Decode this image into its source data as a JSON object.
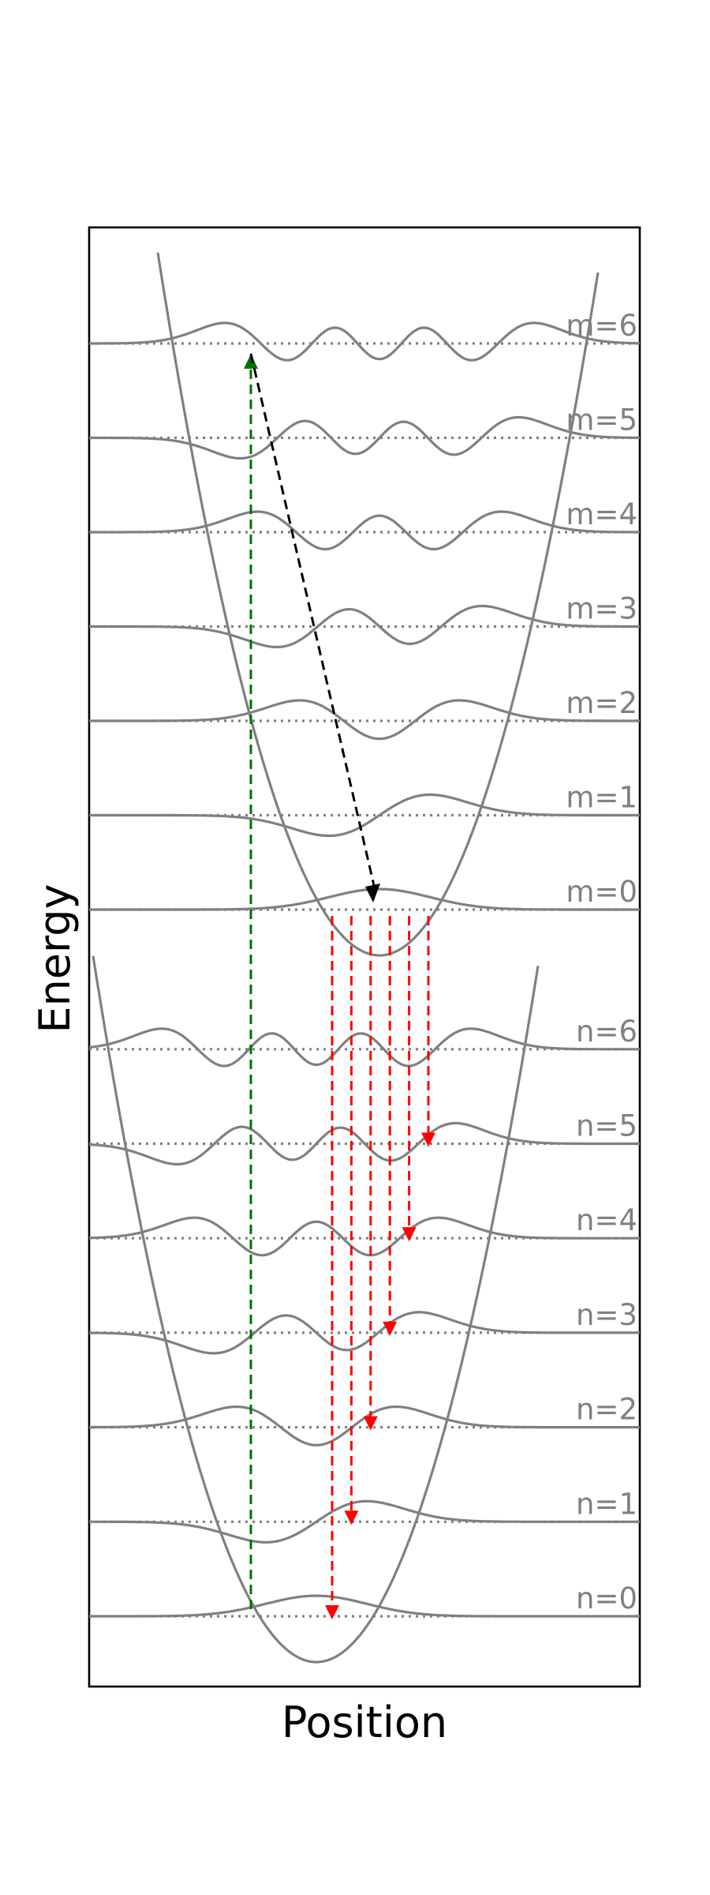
{
  "axes": {
    "xlabel": "Position",
    "ylabel": "Energy"
  },
  "colors": {
    "curve": "#808080",
    "level_line": "#808080",
    "excitation_arrow": "#007000",
    "relaxation_arrow": "#000000",
    "emission_arrows": "#ff0000",
    "frame": "#000000"
  },
  "diagram": {
    "upper_state_levels": [
      "m=0",
      "m=1",
      "m=2",
      "m=3",
      "m=4",
      "m=5",
      "m=6"
    ],
    "lower_state_levels": [
      "n=0",
      "n=1",
      "n=2",
      "n=3",
      "n=4",
      "n=5",
      "n=6"
    ],
    "excitation": {
      "from": "n=0",
      "to": "m=6"
    },
    "relaxation": {
      "from": "m=6",
      "to": "m=0"
    },
    "emission_targets": [
      "n=0",
      "n=1",
      "n=2",
      "n=3",
      "n=4",
      "n=5"
    ]
  }
}
